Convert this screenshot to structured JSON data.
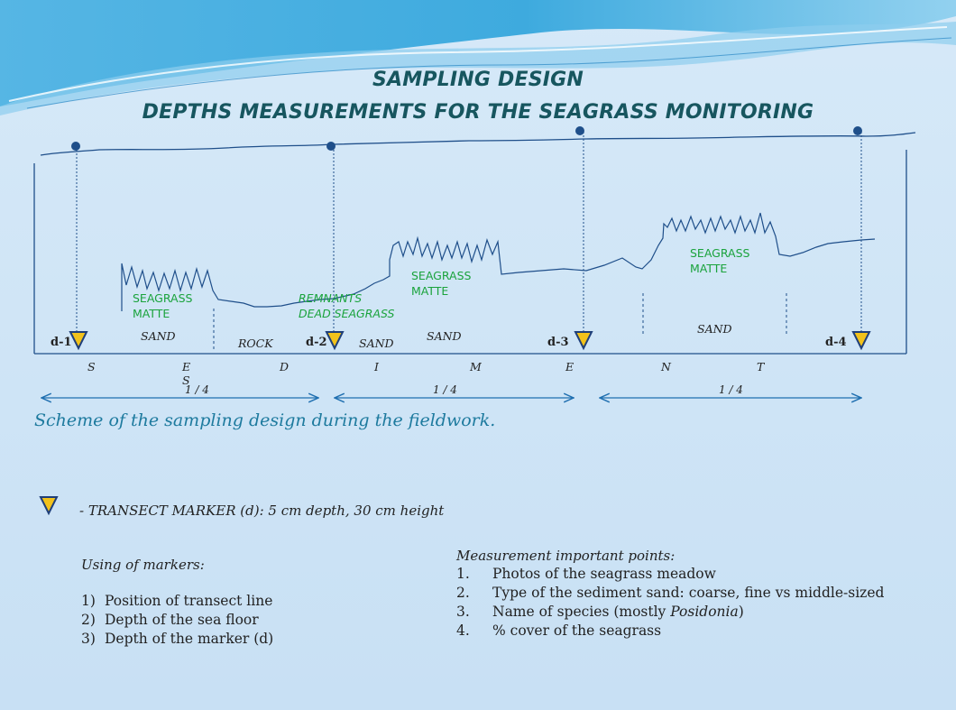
{
  "title": {
    "line1": "SAMPLING DESIGN",
    "line2": "DEPTHS MEASUREMENTS FOR THE SEAGRASS MONITORING"
  },
  "diagram": {
    "habitat_labels": {
      "seagrass_matte_1": [
        "SEAGRASS",
        "MATTE"
      ],
      "remnants": [
        "REMNANTS",
        "DEAD SEAGRASS"
      ],
      "seagrass_matte_2": [
        "SEAGRASS",
        "MATTE"
      ],
      "seagrass_matte_3": [
        "SEAGRASS",
        "MATTE"
      ]
    },
    "substrate_labels": {
      "sand_1": "SAND",
      "rock": "ROCK",
      "sand_2": "SAND",
      "sand_3": "SAND",
      "sand_4": "SAND"
    },
    "markers": [
      "d-1",
      "d-2",
      "d-3",
      "d-4"
    ],
    "sediment_letters": [
      "S",
      "E",
      "S",
      "D",
      "I",
      "M",
      "E",
      "N",
      "T"
    ],
    "fraction_labels": [
      "1 / 4",
      "1 / 4",
      "1 / 4"
    ]
  },
  "caption": "Scheme of the sampling design during the fieldwork.",
  "legend": {
    "marker_text": "- TRANSECT MARKER (d): 5 cm depth, 30 cm height"
  },
  "markers_use": {
    "title": "Using of markers:",
    "items": [
      {
        "num": "1)",
        "text": "Position of transect line"
      },
      {
        "num": "2)",
        "text": "Depth of the sea floor"
      },
      {
        "num": "3)",
        "text": "Depth of the marker (d)"
      }
    ]
  },
  "measurement": {
    "title": "Measurement important points:",
    "items": [
      {
        "num": "1.",
        "text": "Photos of the seagrass meadow"
      },
      {
        "num": "2.",
        "text": "Type of the sediment sand: coarse, fine vs middle-sized"
      },
      {
        "num": "3.",
        "text_before": "Name of species (mostly ",
        "species": "Posidonia",
        "text_after": ")"
      },
      {
        "num": "4.",
        "text": "% cover of the seagrass"
      }
    ]
  },
  "colors": {
    "title": "#17565f",
    "seagrass_label": "#1aa33c",
    "line": "#1f4f8a",
    "marker_fill": "#f2c21b",
    "marker_stroke": "#1f3f7a",
    "caption": "#1d7a9e"
  }
}
